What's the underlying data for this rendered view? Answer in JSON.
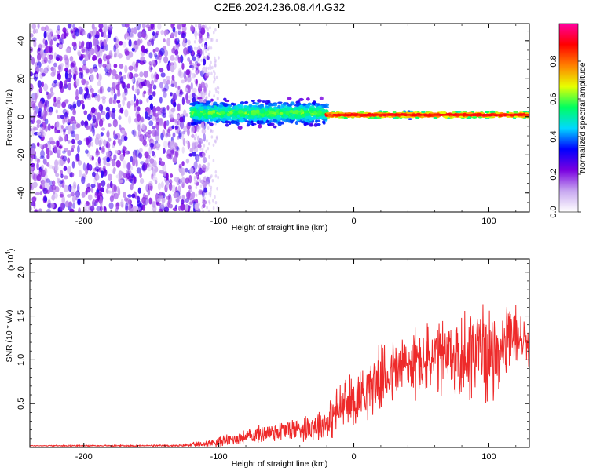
{
  "title": "C2E6.2024.236.08.44.G32",
  "chart_data": [
    {
      "type": "heatmap",
      "name": "spectrogram",
      "xlabel": "Height of straight line (km)",
      "ylabel": "Frequency (Hz)",
      "xlim": [
        -240,
        130
      ],
      "ylim": [
        -50,
        49
      ],
      "xticks": [
        -200,
        -100,
        0,
        100
      ],
      "xtick_labels": [
        "-200",
        "-100",
        "0",
        "100"
      ],
      "yticks": [
        -40,
        -20,
        0,
        20,
        40
      ],
      "ytick_labels": [
        "-40",
        "-20",
        "0",
        "20",
        "40"
      ],
      "colorbar": {
        "label": "Normalized spectral amplitude",
        "range": [
          0.0,
          1.0
        ],
        "ticks": [
          0.0,
          0.2,
          0.4,
          0.6,
          0.8
        ],
        "tick_labels": [
          "0.0",
          "0.2",
          "0.4",
          "0.6",
          "0.8"
        ],
        "colormap": [
          "#ffffff",
          "#c8a8f0",
          "#7a00e0",
          "#0000ff",
          "#00d8ff",
          "#00ff60",
          "#e8ff00",
          "#ff8000",
          "#ff0000",
          "#ff00a0"
        ]
      },
      "regions": [
        {
          "x_range": [
            -240,
            -118
          ],
          "freq_range": [
            -50,
            49
          ],
          "amplitude": 0.05,
          "description": "diffuse noise"
        },
        {
          "x_range": [
            -120,
            -20
          ],
          "center_freq": 2,
          "spread_hz": 6,
          "amplitude": 0.5
        },
        {
          "x_range": [
            -20,
            130
          ],
          "center_freq": 1,
          "spread_hz": 2,
          "amplitude": 0.9
        }
      ]
    },
    {
      "type": "line",
      "name": "snr",
      "xlabel": "Height of straight line (km)",
      "ylabel": "SNR (10 * v/v)",
      "y_scale_label": "(x10",
      "y_scale_exponent": "4",
      "xlim": [
        -240,
        130
      ],
      "ylim": [
        0,
        2.15
      ],
      "xticks": [
        -200,
        -100,
        0,
        100
      ],
      "xtick_labels": [
        "-200",
        "-100",
        "0",
        "100"
      ],
      "yticks": [
        0.5,
        1.0,
        1.5,
        2.0
      ],
      "ytick_labels": [
        "0.5",
        "1.0",
        "1.5",
        "2.0"
      ],
      "color": "#ee2a2a",
      "envelope": {
        "x": [
          -240,
          -130,
          -110,
          -100,
          -80,
          -60,
          -40,
          -20,
          -10,
          0,
          20,
          40,
          60,
          80,
          90,
          100,
          110,
          120,
          130
        ],
        "mean": [
          0.02,
          0.02,
          0.04,
          0.07,
          0.12,
          0.18,
          0.22,
          0.28,
          0.45,
          0.55,
          0.8,
          0.95,
          1.0,
          1.02,
          1.15,
          1.05,
          1.1,
          1.3,
          1.15
        ],
        "amplitude": [
          0.005,
          0.01,
          0.04,
          0.06,
          0.08,
          0.12,
          0.14,
          0.2,
          0.3,
          0.3,
          0.35,
          0.4,
          0.42,
          0.5,
          0.6,
          0.5,
          0.4,
          0.35,
          0.2
        ]
      }
    }
  ]
}
